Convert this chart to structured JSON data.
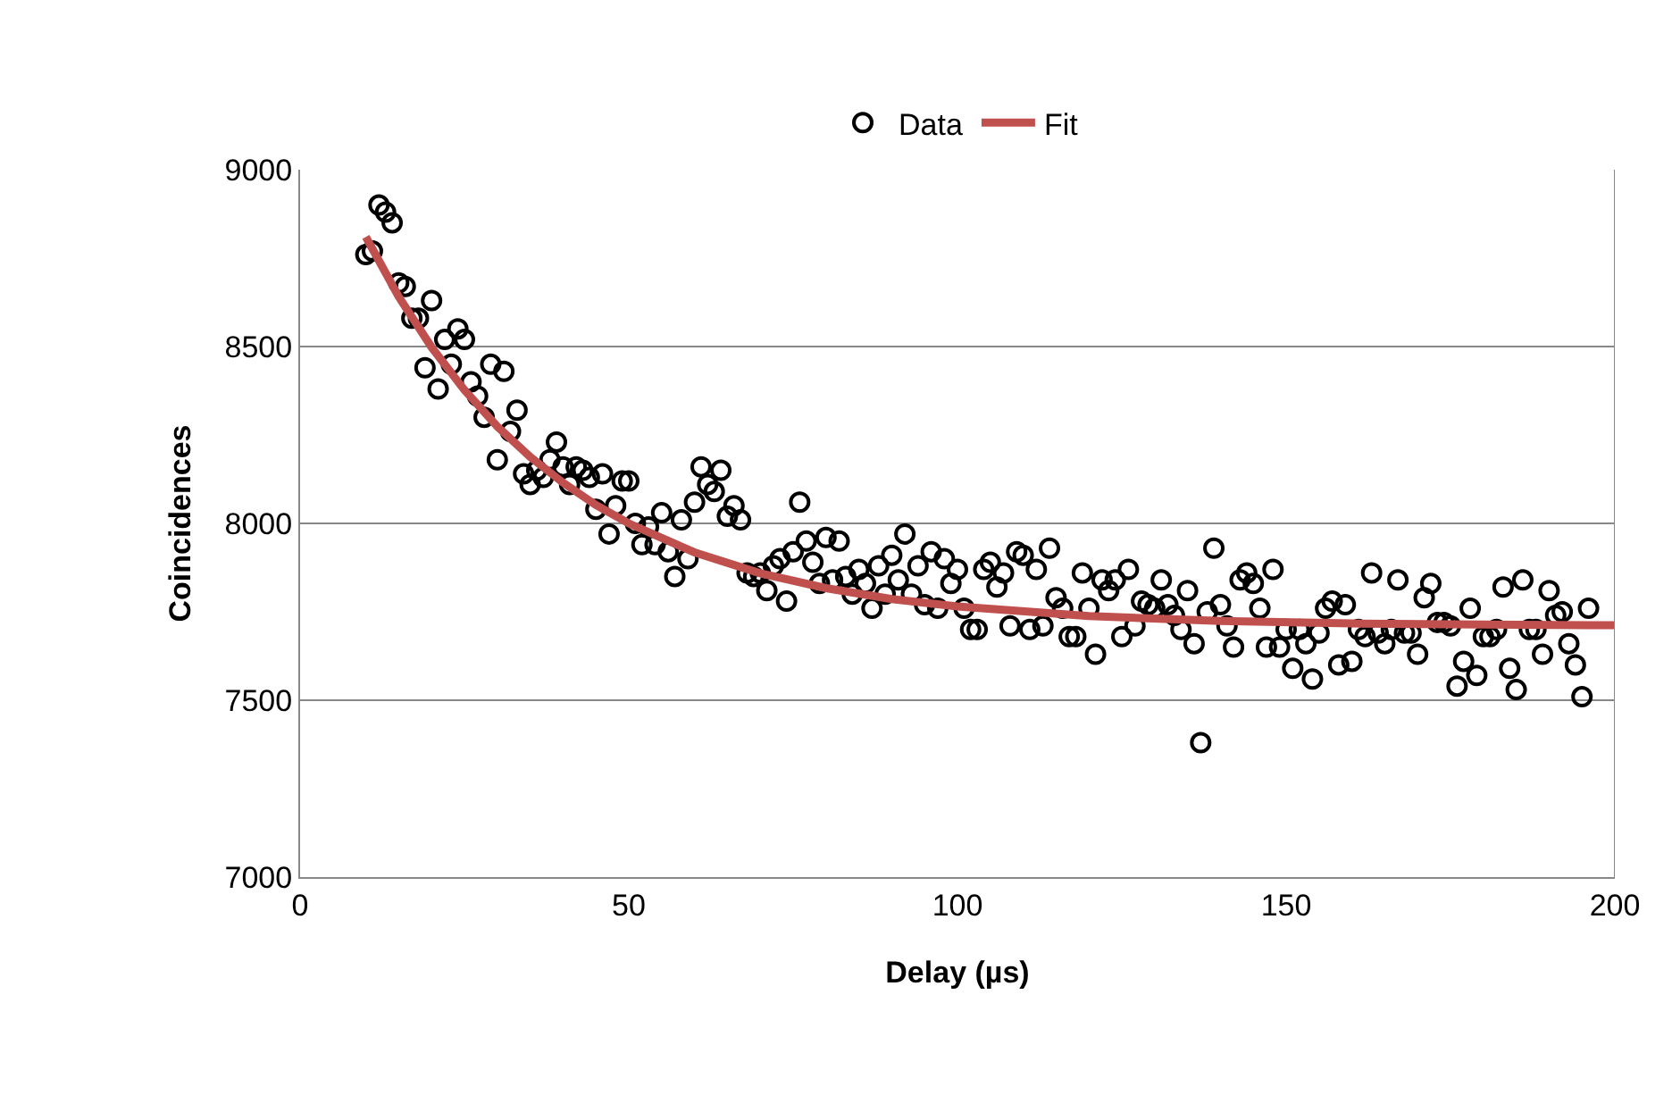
{
  "chart_data": {
    "type": "scatter",
    "xlabel": "Delay (µs)",
    "ylabel": "Coincidences",
    "xlim": [
      0,
      200
    ],
    "xticks": [
      0,
      50,
      100,
      150,
      200
    ],
    "ylim": [
      7000,
      9000
    ],
    "yticks": [
      7000,
      7500,
      8000,
      8500,
      9000
    ],
    "grid": "y",
    "legend": "top",
    "series": [
      {
        "name": "Data",
        "marker": "circle",
        "color": "#000000",
        "x": [
          10,
          11,
          12,
          13,
          14,
          15,
          16,
          17,
          18,
          19,
          20,
          21,
          22,
          23,
          24,
          25,
          26,
          27,
          28,
          29,
          30,
          31,
          32,
          33,
          34,
          35,
          36,
          37,
          38,
          39,
          40,
          41,
          42,
          43,
          44,
          45,
          46,
          47,
          48,
          49,
          50,
          51,
          52,
          53,
          54,
          55,
          56,
          57,
          58,
          59,
          60,
          61,
          62,
          63,
          64,
          65,
          66,
          67,
          68,
          69,
          70,
          71,
          72,
          73,
          74,
          75,
          76,
          77,
          78,
          79,
          80,
          81,
          82,
          83,
          84,
          85,
          86,
          87,
          88,
          89,
          90,
          91,
          92,
          93,
          94,
          95,
          96,
          97,
          98,
          99,
          100,
          101,
          102,
          103,
          104,
          105,
          106,
          107,
          108,
          109,
          110,
          111,
          112,
          113,
          114,
          115,
          116,
          117,
          118,
          119,
          120,
          121,
          122,
          123,
          124,
          125,
          126,
          127,
          128,
          129,
          130,
          131,
          132,
          133,
          134,
          135,
          136,
          137,
          138,
          139,
          140,
          141,
          142,
          143,
          144,
          145,
          146,
          147,
          148,
          149,
          150,
          151,
          152,
          153,
          154,
          155,
          156,
          157,
          158,
          159,
          160,
          161,
          162,
          163,
          164,
          165,
          166,
          167,
          168,
          169,
          170,
          171,
          172,
          173,
          174,
          175,
          176,
          177,
          178,
          179,
          180,
          181,
          182,
          183,
          184,
          185,
          186,
          187,
          188,
          189,
          190,
          191,
          192,
          193,
          194,
          195,
          196
        ],
        "values": [
          8760,
          8770,
          8900,
          8880,
          8850,
          8680,
          8670,
          8580,
          8580,
          8440,
          8630,
          8380,
          8520,
          8450,
          8550,
          8520,
          8400,
          8360,
          8300,
          8450,
          8180,
          8430,
          8260,
          8320,
          8140,
          8110,
          8150,
          8130,
          8180,
          8230,
          8160,
          8110,
          8160,
          8150,
          8130,
          8040,
          8140,
          7970,
          8050,
          8120,
          8120,
          8000,
          7940,
          7990,
          7940,
          8030,
          7920,
          7850,
          8010,
          7900,
          8060,
          8160,
          8110,
          8090,
          8150,
          8020,
          8050,
          8010,
          7860,
          7850,
          7860,
          7810,
          7880,
          7900,
          7780,
          7920,
          8060,
          7950,
          7890,
          7830,
          7960,
          7840,
          7950,
          7850,
          7800,
          7870,
          7830,
          7760,
          7880,
          7800,
          7910,
          7840,
          7970,
          7800,
          7880,
          7770,
          7920,
          7760,
          7900,
          7830,
          7870,
          7760,
          7700,
          7700,
          7870,
          7890,
          7820,
          7860,
          7710,
          7920,
          7910,
          7700,
          7870,
          7710,
          7930,
          7790,
          7760,
          7680,
          7680,
          7860,
          7760,
          7630,
          7840,
          7810,
          7840,
          7680,
          7870,
          7710,
          7780,
          7770,
          7760,
          7840,
          7770,
          7740,
          7700,
          7810,
          7660,
          7380,
          7750,
          7930,
          7770,
          7710,
          7650,
          7840,
          7860,
          7830,
          7760,
          7650,
          7870,
          7650,
          7700,
          7590,
          7700,
          7660,
          7560,
          7690,
          7760,
          7780,
          7600,
          7770,
          7610,
          7700,
          7680,
          7860,
          7690,
          7660,
          7700,
          7840,
          7690,
          7690,
          7630,
          7790,
          7830,
          7720,
          7720,
          7710,
          7540,
          7610,
          7760,
          7570,
          7680,
          7680,
          7700,
          7820,
          7590,
          7530,
          7840,
          7700,
          7700,
          7630,
          7810,
          7740,
          7750,
          7660,
          7600,
          7510,
          7760
        ]
      },
      {
        "name": "Fit",
        "type": "line",
        "marker": "none",
        "color": "#c0504d",
        "x": [
          10,
          15,
          20,
          25,
          30,
          35,
          40,
          45,
          50,
          60,
          70,
          80,
          90,
          100,
          120,
          140,
          160,
          180,
          200
        ],
        "values": [
          8810,
          8641,
          8498,
          8377,
          8274,
          8188,
          8115,
          8052,
          8000,
          7918,
          7859,
          7817,
          7786,
          7765,
          7738,
          7724,
          7717,
          7714,
          7712
        ]
      }
    ]
  }
}
